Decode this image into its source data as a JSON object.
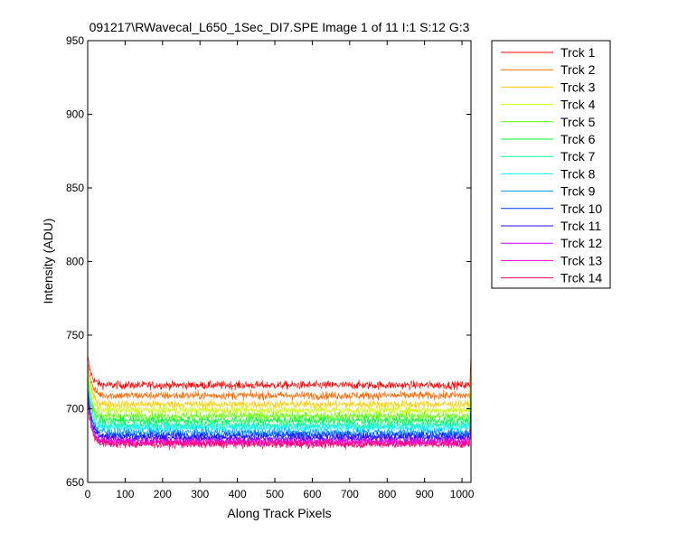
{
  "chart_data": {
    "type": "line",
    "title": "091217\\RWavecal_L650_1Sec_DI7.SPE  Image 1 of 11  I:1  S:12  G:3",
    "xlabel": "Along Track Pixels",
    "ylabel": "Intensity (ADU)",
    "xlim": [
      0,
      1024
    ],
    "ylim": [
      650,
      950
    ],
    "xticks": [
      0,
      100,
      200,
      300,
      400,
      500,
      600,
      700,
      800,
      900,
      1000
    ],
    "yticks": [
      650,
      700,
      750,
      800,
      850,
      900,
      950
    ],
    "grid": false,
    "legend_position": "outside-right",
    "n_points": 1024,
    "start_x": 1,
    "series": [
      {
        "name": "Trck 1",
        "color": "#ff0000",
        "baseline": 716,
        "start_value": 734,
        "end_value": 740,
        "noise": 2.0
      },
      {
        "name": "Trck 2",
        "color": "#ff6600",
        "baseline": 709,
        "start_value": 731,
        "end_value": 735,
        "noise": 2.0
      },
      {
        "name": "Trck 3",
        "color": "#ffcc00",
        "baseline": 703,
        "start_value": 728,
        "end_value": 728,
        "noise": 2.0
      },
      {
        "name": "Trck 4",
        "color": "#ccff00",
        "baseline": 699,
        "start_value": 725,
        "end_value": 722,
        "noise": 2.0
      },
      {
        "name": "Trck 5",
        "color": "#66ff00",
        "baseline": 695,
        "start_value": 722,
        "end_value": 718,
        "noise": 2.0
      },
      {
        "name": "Trck 6",
        "color": "#00ff33",
        "baseline": 692,
        "start_value": 720,
        "end_value": 715,
        "noise": 2.0
      },
      {
        "name": "Trck 7",
        "color": "#00ff99",
        "baseline": 689,
        "start_value": 717,
        "end_value": 712,
        "noise": 2.0
      },
      {
        "name": "Trck 8",
        "color": "#00ffff",
        "baseline": 687,
        "start_value": 715,
        "end_value": 709,
        "noise": 2.0
      },
      {
        "name": "Trck 9",
        "color": "#0099ff",
        "baseline": 684,
        "start_value": 713,
        "end_value": 706,
        "noise": 2.0
      },
      {
        "name": "Trck 10",
        "color": "#0033ff",
        "baseline": 682,
        "start_value": 711,
        "end_value": 703,
        "noise": 2.0
      },
      {
        "name": "Trck 11",
        "color": "#3300ff",
        "baseline": 680,
        "start_value": 709,
        "end_value": 701,
        "noise": 2.0
      },
      {
        "name": "Trck 12",
        "color": "#cc00ff",
        "baseline": 678,
        "start_value": 707,
        "end_value": 699,
        "noise": 2.0
      },
      {
        "name": "Trck 13",
        "color": "#ff00cc",
        "baseline": 677,
        "start_value": 705,
        "end_value": 697,
        "noise": 2.0
      },
      {
        "name": "Trck 14",
        "color": "#ff0066",
        "baseline": 676,
        "start_value": 703,
        "end_value": 695,
        "noise": 2.0
      }
    ]
  }
}
